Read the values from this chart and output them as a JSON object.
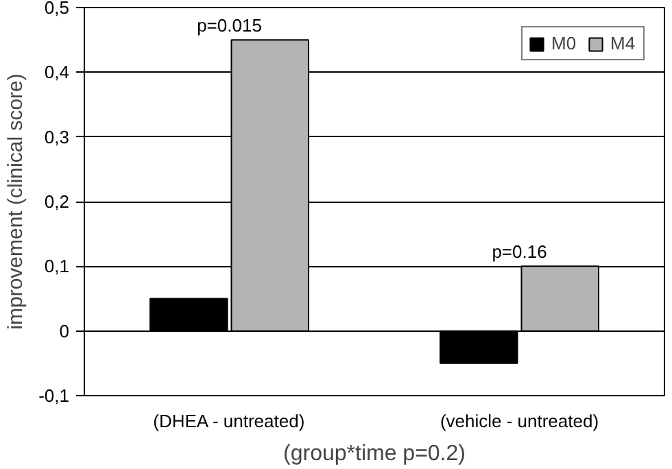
{
  "chart_data": {
    "type": "bar",
    "ylabel": "improvement (clinical score)",
    "xlabel": "(group*time p=0.2)",
    "categories": [
      "(DHEA - untreated)",
      "(vehicle - untreated)"
    ],
    "series": [
      {
        "name": "M0",
        "color": "#000000",
        "values": [
          0.05,
          -0.05
        ]
      },
      {
        "name": "M4",
        "color": "#b4b4b4",
        "values": [
          0.45,
          0.1
        ]
      }
    ],
    "ylim": [
      -0.1,
      0.5
    ],
    "yticks": [
      {
        "value": -0.1,
        "label": "-0,1"
      },
      0,
      {
        "value": 0.1,
        "label": "0,1"
      },
      {
        "value": 0.2,
        "label": "0,2"
      },
      {
        "value": 0.3,
        "label": "0,3"
      },
      {
        "value": 0.4,
        "label": "0,4"
      },
      {
        "value": 0.5,
        "label": "0,5"
      }
    ],
    "grid": "y",
    "legend": "top right",
    "annotations": [
      "p=0.015",
      "p=0.16"
    ]
  }
}
